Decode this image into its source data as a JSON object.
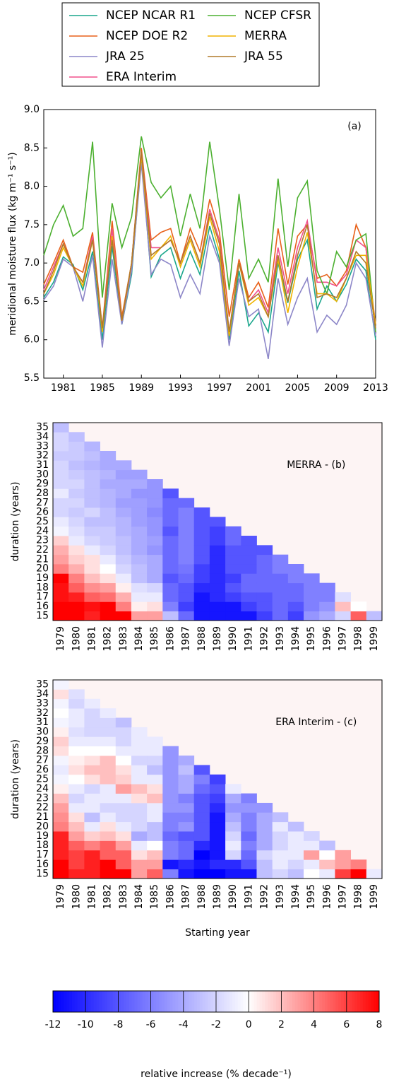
{
  "chart_data": [
    {
      "type": "line",
      "ylabel": "meridional moisture flux (kg m⁻¹ s⁻¹)",
      "annotation": "(a)",
      "legend": "upper center",
      "x": [
        1979,
        1980,
        1981,
        1982,
        1983,
        1984,
        1985,
        1986,
        1987,
        1988,
        1989,
        1990,
        1991,
        1992,
        1993,
        1994,
        1995,
        1996,
        1997,
        1998,
        1999,
        2000,
        2001,
        2002,
        2003,
        2004,
        2005,
        2006,
        2007,
        2008,
        2009,
        2010,
        2011,
        2012,
        2013
      ],
      "xlim": [
        1979,
        2013
      ],
      "xticks": [
        1981,
        1985,
        1989,
        1993,
        1997,
        2001,
        2005,
        2009,
        2013
      ],
      "ylim": [
        5.5,
        9
      ],
      "yticks": [
        {
          "value": 9,
          "label": "9.0"
        },
        8.5,
        {
          "value": 8,
          "label": "8.0"
        },
        7.5,
        {
          "value": 7,
          "label": "7.0"
        },
        6.5,
        {
          "value": 6,
          "label": "6.0"
        },
        5.5
      ],
      "series": [
        {
          "name": "NCEP NCAR R1",
          "color": "#1aa68c",
          "values": [
            6.55,
            6.75,
            7.08,
            6.98,
            6.65,
            7.15,
            6.0,
            7.22,
            6.2,
            6.85,
            8.38,
            6.82,
            7.1,
            7.2,
            6.8,
            7.15,
            6.85,
            7.48,
            7.05,
            6.0,
            6.9,
            6.18,
            6.35,
            6.1,
            7.0,
            6.48,
            7.05,
            7.3,
            6.4,
            6.7,
            6.5,
            6.72,
            7.05,
            6.9,
            6.0
          ]
        },
        {
          "name": "NCEP DOE R2",
          "color": "#e8611a",
          "values": [
            6.72,
            7.0,
            7.3,
            6.95,
            6.88,
            7.4,
            6.15,
            7.55,
            6.3,
            7.0,
            8.5,
            7.3,
            7.4,
            7.45,
            7.0,
            7.45,
            7.15,
            7.83,
            7.4,
            6.3,
            7.05,
            6.55,
            6.75,
            6.42,
            7.45,
            6.72,
            7.35,
            7.5,
            6.8,
            6.85,
            6.7,
            6.9,
            7.5,
            7.2,
            6.1
          ]
        },
        {
          "name": "JRA 25",
          "color": "#8c86c8",
          "values": [
            6.52,
            6.7,
            7.05,
            6.95,
            6.5,
            7.1,
            5.9,
            7.05,
            6.2,
            6.9,
            8.3,
            6.85,
            7.05,
            6.98,
            6.55,
            6.85,
            6.6,
            7.35,
            7.0,
            5.92,
            6.8,
            6.3,
            6.4,
            5.75,
            6.8,
            6.2,
            6.55,
            6.8,
            6.1,
            6.32,
            6.2,
            6.45,
            7.0,
            6.8,
            6.05
          ]
        },
        {
          "name": "ERA Interim",
          "color": "#f0508c",
          "values": [
            6.65,
            6.95,
            7.25,
            6.95,
            6.75,
            7.35,
            6.1,
            7.45,
            6.25,
            7.0,
            8.45,
            7.2,
            7.2,
            7.3,
            7.0,
            7.35,
            7.0,
            7.7,
            7.3,
            6.1,
            7.0,
            6.5,
            6.65,
            6.35,
            7.2,
            6.6,
            7.2,
            7.55,
            6.75,
            6.75,
            6.7,
            6.85,
            7.3,
            7.2,
            6.2
          ]
        },
        {
          "name": "NCEP CFSR",
          "color": "#4cb030",
          "values": [
            7.1,
            7.5,
            7.75,
            7.35,
            7.45,
            8.58,
            6.55,
            7.78,
            7.2,
            7.6,
            8.65,
            8.05,
            7.85,
            8.0,
            7.35,
            7.9,
            7.45,
            8.58,
            7.7,
            6.65,
            7.9,
            6.8,
            7.05,
            6.75,
            8.1,
            6.95,
            7.85,
            8.07,
            6.9,
            6.6,
            7.15,
            6.95,
            7.3,
            7.38,
            6.1
          ]
        },
        {
          "name": "MERRA",
          "color": "#f0b400",
          "values": [
            6.6,
            6.85,
            7.2,
            6.95,
            6.7,
            7.3,
            6.1,
            7.35,
            6.25,
            7.0,
            8.4,
            7.05,
            7.2,
            7.35,
            6.95,
            7.3,
            6.95,
            7.6,
            7.15,
            6.05,
            7.0,
            6.45,
            6.55,
            6.3,
            7.05,
            6.35,
            6.95,
            7.4,
            6.6,
            6.6,
            6.5,
            6.8,
            7.1,
            7.1,
            6.2
          ]
        },
        {
          "name": "JRA 55",
          "color": "#b07a2a",
          "values": [
            6.6,
            6.9,
            7.25,
            6.95,
            6.75,
            7.3,
            6.15,
            7.3,
            6.25,
            7.0,
            8.45,
            7.1,
            7.2,
            7.3,
            7.0,
            7.35,
            7.0,
            7.65,
            7.25,
            6.1,
            7.0,
            6.5,
            6.6,
            6.3,
            7.1,
            6.5,
            7.1,
            7.5,
            6.55,
            6.6,
            6.55,
            6.8,
            7.15,
            7.0,
            6.15
          ]
        }
      ]
    },
    {
      "type": "heatmap",
      "annotation": "MERRA - (b)",
      "ylabel": "duration (years)",
      "categories": [
        "1979",
        "1980",
        "1981",
        "1982",
        "1983",
        "1984",
        "1985",
        "1986",
        "1987",
        "1988",
        "1989",
        "1990",
        "1991",
        "1992",
        "1993",
        "1994",
        "1995",
        "1996",
        "1997",
        "1998",
        "1999"
      ],
      "durations": [
        15,
        16,
        17,
        18,
        19,
        20,
        21,
        22,
        23,
        24,
        25,
        26,
        27,
        28,
        29,
        30,
        31,
        32,
        33,
        34,
        35
      ],
      "values": [
        [
          8,
          8,
          7.5,
          7.5,
          8,
          4,
          3,
          2.5,
          1.5,
          -0.5,
          -1,
          -2,
          -2,
          -1,
          -2,
          -2,
          -2,
          -2.5,
          -2,
          -2,
          -3
        ],
        [
          8,
          8,
          7,
          5,
          4,
          2.5,
          1.5,
          1,
          -1,
          -1.5,
          -2,
          -2.5,
          -2,
          -2.5,
          -2,
          -2.5,
          -3,
          -2.5,
          -2.5,
          -3
        ],
        [
          7,
          7.5,
          5,
          3.5,
          2,
          1,
          1,
          -1,
          -2,
          -2.5,
          -3,
          -2,
          -3,
          -3,
          -3,
          -3,
          -3.5,
          -3,
          -3.5
        ],
        [
          8,
          8,
          4.5,
          3,
          1,
          0,
          -1,
          -2,
          -2.5,
          -2.5,
          -3,
          -3,
          -3.5,
          -3.5,
          -4,
          -3.5,
          -4,
          -4
        ],
        [
          8,
          4,
          2.5,
          0.5,
          -1,
          -2,
          -2.5,
          -3,
          -3,
          -3.5,
          -3.5,
          -4,
          -4.5,
          -4,
          -4,
          -4.5,
          -4
        ],
        [
          3,
          0.5,
          -1,
          -1.5,
          -3,
          -3,
          -3.5,
          -4,
          -4,
          -4,
          -4.5,
          -4.5,
          -4.5,
          -5,
          -4,
          -4.5
        ],
        [
          3,
          1,
          -1,
          -2,
          -4,
          -4,
          -4,
          -5,
          -4.5,
          -5,
          -5,
          -5.5,
          -5,
          -5,
          -5
        ],
        [
          -3,
          -6,
          -7,
          -7,
          -8,
          -7,
          -7,
          -7,
          -7,
          -8,
          -7,
          -7,
          -7,
          -8
        ],
        [
          -7,
          -9,
          -8,
          -8,
          -7,
          -6.5,
          -6,
          -6,
          -6,
          -6,
          -6,
          -6,
          -7
        ],
        [
          -11,
          -11,
          -11,
          -10,
          -9,
          -9,
          -8,
          -8,
          -8,
          -8,
          -8,
          -8
        ],
        [
          -11,
          -11,
          -10,
          -10,
          -10,
          -10,
          -10,
          -10,
          -9,
          -9,
          -8
        ],
        [
          -11,
          -11,
          -9,
          -8,
          -9,
          -8,
          -8,
          -8,
          -7,
          -7
        ],
        [
          -11,
          -9,
          -8,
          -7,
          -7,
          -8,
          -8,
          -8,
          -8
        ],
        [
          -9,
          -8,
          -8,
          -7,
          -7,
          -7,
          -7,
          -8
        ],
        [
          -7,
          -7,
          -7,
          -7,
          -7,
          -6,
          -6
        ],
        [
          -9,
          -8,
          -7,
          -7,
          -6,
          -6
        ],
        [
          -5,
          -6,
          -6,
          -6,
          -6
        ],
        [
          -4,
          -5,
          -6,
          -6
        ],
        [
          -2,
          2,
          -1.5
        ],
        [
          5,
          0
        ],
        [
          -3
        ]
      ]
    },
    {
      "type": "heatmap",
      "annotation": "ERA Interim - (c)",
      "ylabel": "duration (years)",
      "xlabel": "Starting year",
      "categories": [
        "1979",
        "1980",
        "1981",
        "1982",
        "1983",
        "1984",
        "1985",
        "1986",
        "1987",
        "1988",
        "1989",
        "1990",
        "1991",
        "1992",
        "1993",
        "1994",
        "1995",
        "1996",
        "1997",
        "1998",
        "1999"
      ],
      "durations": [
        15,
        16,
        17,
        18,
        19,
        20,
        21,
        22,
        23,
        24,
        25,
        26,
        27,
        28,
        29,
        30,
        31,
        32,
        33,
        34,
        35
      ],
      "values": [
        [
          8,
          8,
          7,
          7,
          7,
          4,
          3.5,
          3,
          2,
          0.5,
          -0.5,
          -1,
          -0.5,
          1,
          1.5,
          0.5,
          -0.5,
          0,
          -0.5,
          1,
          -0.5
        ],
        [
          7,
          6,
          6,
          5,
          3,
          2,
          1,
          -1,
          -2,
          -1,
          0,
          1,
          0.5,
          0,
          -1,
          -1.5,
          -1,
          -1,
          -2,
          -1.5
        ],
        [
          7,
          7,
          7,
          4,
          1.5,
          -1,
          -3,
          -1,
          -1,
          -2,
          1,
          2,
          1,
          0,
          -1,
          -2,
          -2,
          -2,
          -1
        ],
        [
          8,
          8,
          5,
          5,
          2,
          1,
          -1,
          -2,
          -1,
          -1,
          2,
          2,
          2,
          0,
          -1,
          -2,
          -2,
          -1
        ],
        [
          8,
          5,
          5,
          3,
          1,
          -1,
          -2,
          -2,
          -1,
          3,
          1.5,
          1,
          0,
          -1,
          -2,
          -2,
          -3
        ],
        [
          3,
          3,
          1,
          -1,
          -4,
          -2,
          -2,
          -2,
          1,
          2,
          -1,
          -1,
          -2,
          -1,
          -1,
          -1
        ],
        [
          5,
          3,
          2,
          0,
          -3,
          -3,
          -1,
          -1,
          2,
          1,
          -1,
          -3,
          -2,
          -1,
          -1
        ],
        [
          -6,
          -11,
          -6,
          -6,
          -7,
          -6,
          -6,
          -5,
          -5,
          -5,
          -5,
          -5,
          -5,
          -5
        ],
        [
          -11,
          -10,
          -7,
          -7,
          -8,
          -5,
          -6,
          -5,
          -6,
          -4,
          -4,
          -3,
          -4
        ],
        [
          -12,
          -11,
          -12,
          -10,
          -8,
          -8,
          -8,
          -8,
          -8,
          -7,
          -6,
          -8
        ],
        [
          -12,
          -10,
          -11,
          -11,
          -11,
          -11,
          -11,
          -10,
          -9,
          -8,
          -9
        ],
        [
          -11,
          -10,
          -2,
          -1,
          -2,
          -3,
          -4,
          -5,
          -4,
          -1
        ],
        [
          -11,
          -8,
          -7,
          -6,
          -7,
          -6,
          -6,
          -5,
          -6
        ],
        [
          -3,
          -3,
          -2,
          -4,
          -4,
          -4,
          -4,
          -5
        ],
        [
          -2,
          -1,
          -1,
          -2,
          -2,
          -1,
          -3
        ],
        [
          -3,
          -2,
          -1,
          -1,
          -1,
          -3
        ],
        [
          0,
          -1,
          3,
          -1,
          -2
        ],
        [
          -1,
          2,
          0,
          -3
        ],
        [
          6,
          3,
          3
        ],
        [
          8,
          4
        ],
        [
          -1
        ]
      ]
    },
    {
      "type": "colorbar",
      "label": "relative increase (% decade⁻¹)",
      "colors": [
        "#0000ff",
        "#ffffff",
        "#ff0000"
      ],
      "xlim": [
        -12,
        8
      ],
      "xticks": [
        -12,
        -10,
        -8,
        -6,
        -4,
        -2,
        0,
        2,
        4,
        6,
        8
      ]
    }
  ]
}
